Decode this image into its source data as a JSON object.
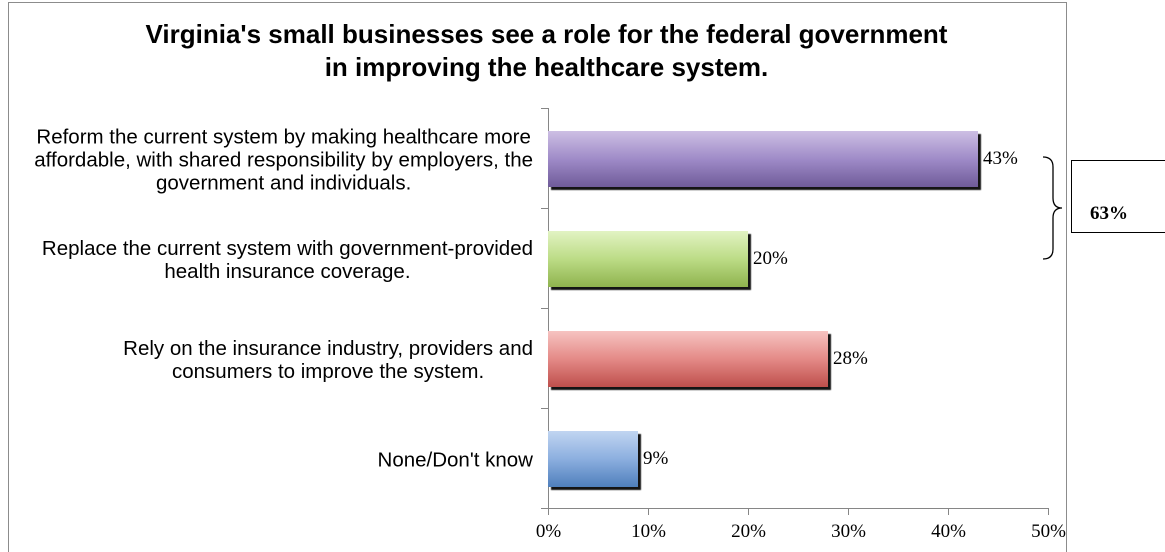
{
  "chart_data": {
    "type": "bar",
    "orientation": "horizontal",
    "title": "Virginia's small businesses see a role for the federal government\nin improving the healthcare system.",
    "categories": [
      "Reform the current system by making healthcare more\naffordable, with shared responsibility by employers, the\ngovernment and individuals.",
      "Replace the current system with government-provided\nhealth insurance coverage.",
      "Rely on the insurance industry, providers and\nconsumers to improve the system.",
      "None/Don't know"
    ],
    "values": [
      43,
      20,
      28,
      9
    ],
    "data_labels": [
      "43%",
      "20%",
      "28%",
      "9%"
    ],
    "xlim": [
      0,
      50
    ],
    "xticks": [
      0,
      10,
      20,
      30,
      40,
      50
    ],
    "xtick_labels": [
      "0%",
      "10%",
      "20%",
      "30%",
      "40%",
      "50%"
    ],
    "grid": false,
    "bar_colors": [
      [
        "#cdbfe4",
        "#9f8bc8",
        "#6f5b99"
      ],
      [
        "#e2f3c3",
        "#bcdc86",
        "#8fb34e"
      ],
      [
        "#f6c3c1",
        "#e48a87",
        "#be4f4c"
      ],
      [
        "#c1d5f1",
        "#8cafdf",
        "#4f7fbc"
      ]
    ],
    "annotations": [
      {
        "text": "63%",
        "groups_categories": [
          0,
          1
        ]
      }
    ]
  }
}
